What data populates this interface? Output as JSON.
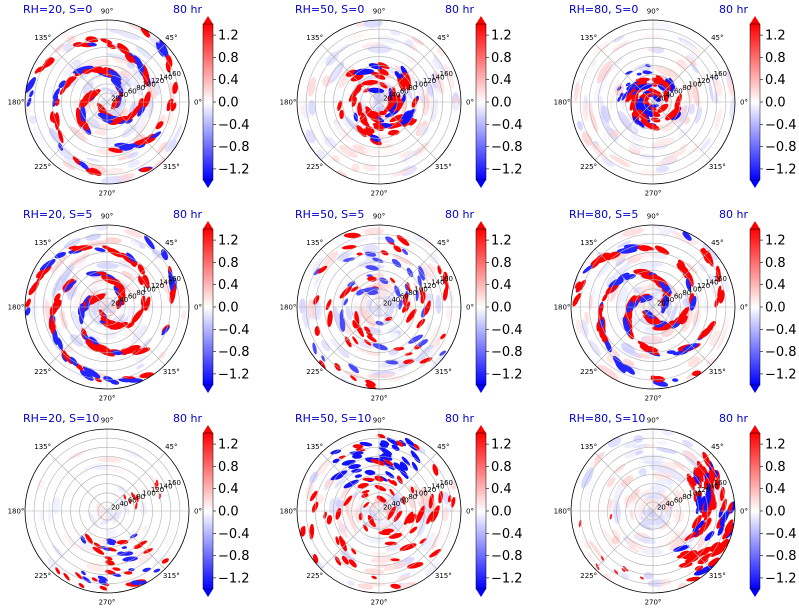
{
  "chart_data": {
    "type": "heatmap",
    "layout": "3x3 grid of polar plots with colorbars",
    "time_label": "80 hr",
    "colorbar": {
      "ticks": [
        "1.2",
        "0.8",
        "0.4",
        "0.0",
        "−0.4",
        "−0.8",
        "−1.2"
      ],
      "tick_values": [
        1.2,
        0.8,
        0.4,
        0.0,
        -0.4,
        -0.8,
        -1.2
      ],
      "range": [
        -1.4,
        1.4
      ],
      "colormap": "bwr",
      "colors": {
        "negative": "#0000ff",
        "zero": "#ffffff",
        "positive": "#ff0000"
      },
      "extend": "both"
    },
    "angular_ticks": [
      "90°",
      "45°",
      "0°",
      "315°",
      "270°",
      "225°",
      "180°",
      "135°"
    ],
    "angular_tick_degrees": [
      90,
      45,
      0,
      315,
      270,
      225,
      180,
      135
    ],
    "radial_ticks": [
      "20",
      "40",
      "60",
      "80",
      "100",
      "120",
      "140",
      "160"
    ],
    "radial_tick_values": [
      20,
      40,
      60,
      80,
      100,
      120,
      140,
      160
    ],
    "radial_max": 180,
    "panels": [
      {
        "title": "RH=20, S=0",
        "time": "80 hr",
        "rh": 20,
        "shear": 0,
        "pattern": "spiral"
      },
      {
        "title": "RH=50, S=0",
        "time": "80 hr",
        "rh": 50,
        "shear": 0,
        "pattern": "ring"
      },
      {
        "title": "RH=80, S=0",
        "time": "80 hr",
        "rh": 80,
        "shear": 0,
        "pattern": "core"
      },
      {
        "title": "RH=20, S=5",
        "time": "80 hr",
        "rh": 20,
        "shear": 5,
        "pattern": "spiral"
      },
      {
        "title": "RH=50, S=5",
        "time": "80 hr",
        "rh": 50,
        "shear": 5,
        "pattern": "scattered"
      },
      {
        "title": "RH=80, S=5",
        "time": "80 hr",
        "rh": 80,
        "shear": 5,
        "pattern": "spiral-strong"
      },
      {
        "title": "RH=20, S=10",
        "time": "80 hr",
        "rh": 20,
        "shear": 10,
        "pattern": "sparse-southeast"
      },
      {
        "title": "RH=50, S=10",
        "time": "80 hr",
        "rh": 50,
        "shear": 10,
        "pattern": "north-blue"
      },
      {
        "title": "RH=80, S=10",
        "time": "80 hr",
        "rh": 80,
        "shear": 10,
        "pattern": "east-band"
      }
    ]
  }
}
